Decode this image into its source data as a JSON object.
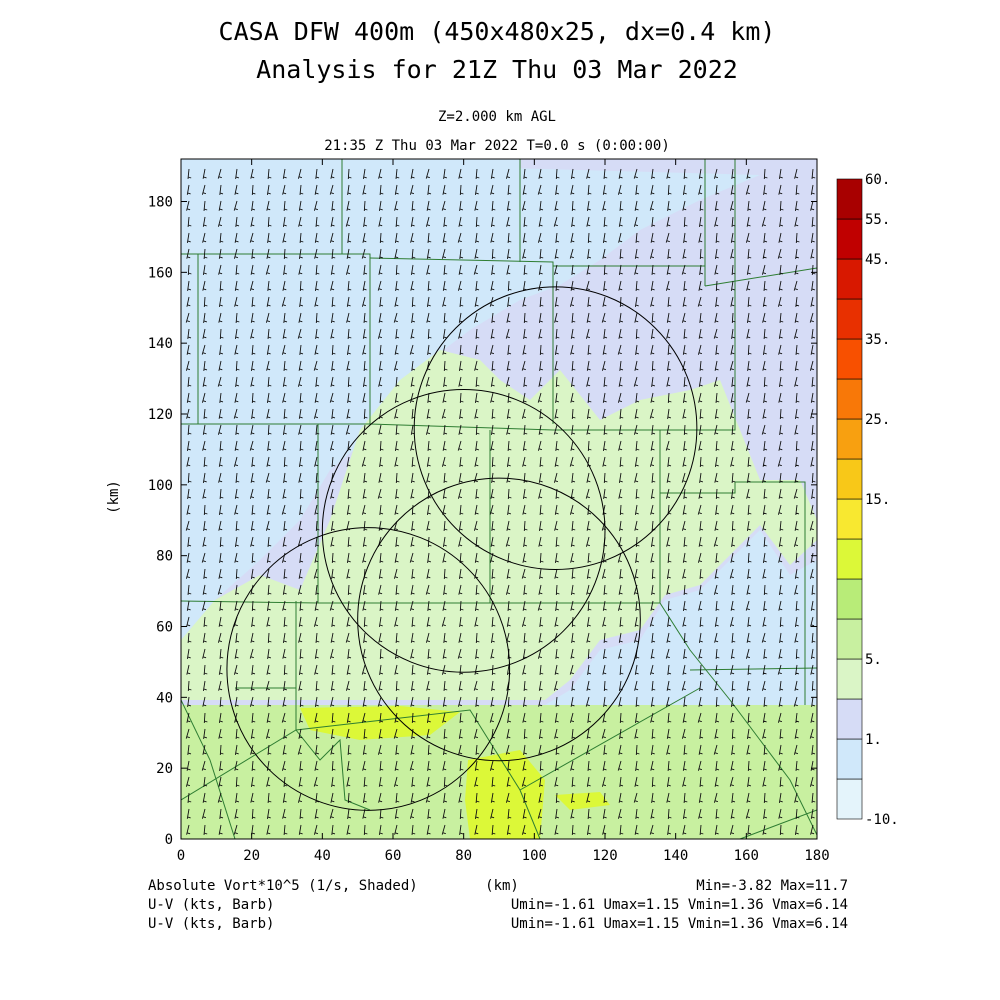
{
  "title": {
    "line1": "CASA DFW 400m (450x480x25, dx=0.4 km)",
    "line2": "Analysis for 21Z Thu 03 Mar 2022"
  },
  "subtitle": {
    "level": "Z=2.000 km AGL",
    "time": "21:35 Z Thu 03 Mar 2022   T=0.0 s (0:00:00)"
  },
  "chart_data": {
    "type": "heatmap",
    "xlabel": "(km)",
    "ylabel": "(km)",
    "xlim": [
      0,
      180
    ],
    "ylim": [
      0,
      192
    ],
    "xticks": [
      0,
      20,
      40,
      60,
      80,
      100,
      120,
      140,
      160,
      180
    ],
    "yticks": [
      0,
      20,
      40,
      60,
      80,
      100,
      120,
      140,
      160,
      180
    ],
    "field": "Absolute Vort*10^5 (1/s, Shaded)",
    "overlay": "U-V (kts, Barb)",
    "radar_rings": [
      {
        "cx": 53,
        "cy": 48,
        "r": 40
      },
      {
        "cx": 80,
        "cy": 87,
        "r": 40
      },
      {
        "cx": 90,
        "cy": 62,
        "r": 40
      },
      {
        "cx": 106,
        "cy": 116,
        "r": 40
      }
    ],
    "colorbar": {
      "colors": [
        "#e4f4fb",
        "#d0e8fa",
        "#d6dcf6",
        "#daf5c6",
        "#c8f0a0",
        "#b8ec78",
        "#dcf838",
        "#f8e830",
        "#f8c818",
        "#f8a010",
        "#f87808",
        "#f85000",
        "#e83000",
        "#d81800",
        "#c00000",
        "#a80000"
      ],
      "labels": [
        "-10.",
        "1.",
        "5.",
        "15.",
        "25.",
        "35.",
        "45.",
        "55.",
        "60."
      ],
      "label_levels": [
        0,
        2,
        4,
        8,
        10,
        12,
        14,
        15,
        16
      ]
    },
    "stats": {
      "field_minmax": "Min=-3.82 Max=11.7",
      "wind_minmax": "Umin=-1.61 Umax=1.15 Vmin=1.36 Vmax=6.14"
    }
  },
  "footer": {
    "line1_left": "Absolute Vort*10^5 (1/s, Shaded)",
    "line1_center": "(km)",
    "line1_right": "Min=-3.82 Max=11.7",
    "line2_left": "U-V (kts, Barb)",
    "line2_right": "Umin=-1.61 Umax=1.15 Vmin=1.36 Vmax=6.14",
    "line3_left": "U-V (kts, Barb)",
    "line3_right": "Umin=-1.61 Umax=1.15 Vmin=1.36 Vmax=6.14"
  }
}
